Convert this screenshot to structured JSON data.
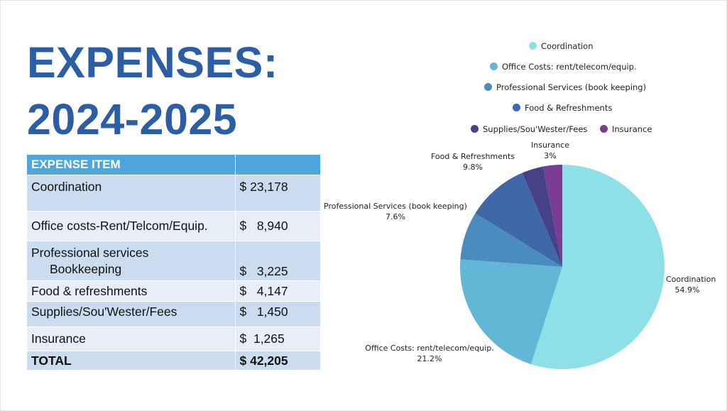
{
  "title": {
    "line1": "EXPENSES:",
    "line2": "2024-2025"
  },
  "table": {
    "header": [
      "EXPENSE ITEM",
      ""
    ],
    "rows": [
      {
        "item": "Coordination",
        "item2": "",
        "amount": "$ 23,178"
      },
      {
        "item": "Office costs-Rent/Telcom/Equip.",
        "item2": "",
        "amount": "$   8,940"
      },
      {
        "item": "Professional services",
        "item2": "Bookkeeping",
        "amount": "$   3,225"
      },
      {
        "item": "Food & refreshments",
        "item2": "",
        "amount": "$   4,147"
      },
      {
        "item": " Supplies/Sou'Wester/Fees",
        "item2": "",
        "amount": "$   1,450"
      },
      {
        "item": "Insurance",
        "item2": "",
        "amount": "$  1,265"
      }
    ],
    "total": {
      "item": "TOTAL",
      "amount": "$ 42,205"
    }
  },
  "chart_data": {
    "type": "pie",
    "categories": [
      "Coordination",
      "Office Costs: rent/telecom/equip.",
      "Professional Services (book keeping)",
      "Food & Refreshments",
      "Supplies/Sou'Wester/Fees",
      "Insurance"
    ],
    "values": [
      54.9,
      21.2,
      7.6,
      9.8,
      3.4,
      3
    ],
    "data_labels": [
      "54.9%",
      "21.2%",
      "7.6%",
      "9.8%",
      "",
      "3%"
    ],
    "colors": [
      "#8ee0e8",
      "#62b6d6",
      "#4b8cbf",
      "#3e68a8",
      "#47418a",
      "#7b3d93"
    ],
    "legend_position": "top-right",
    "start": "12 o'clock, clockwise"
  }
}
